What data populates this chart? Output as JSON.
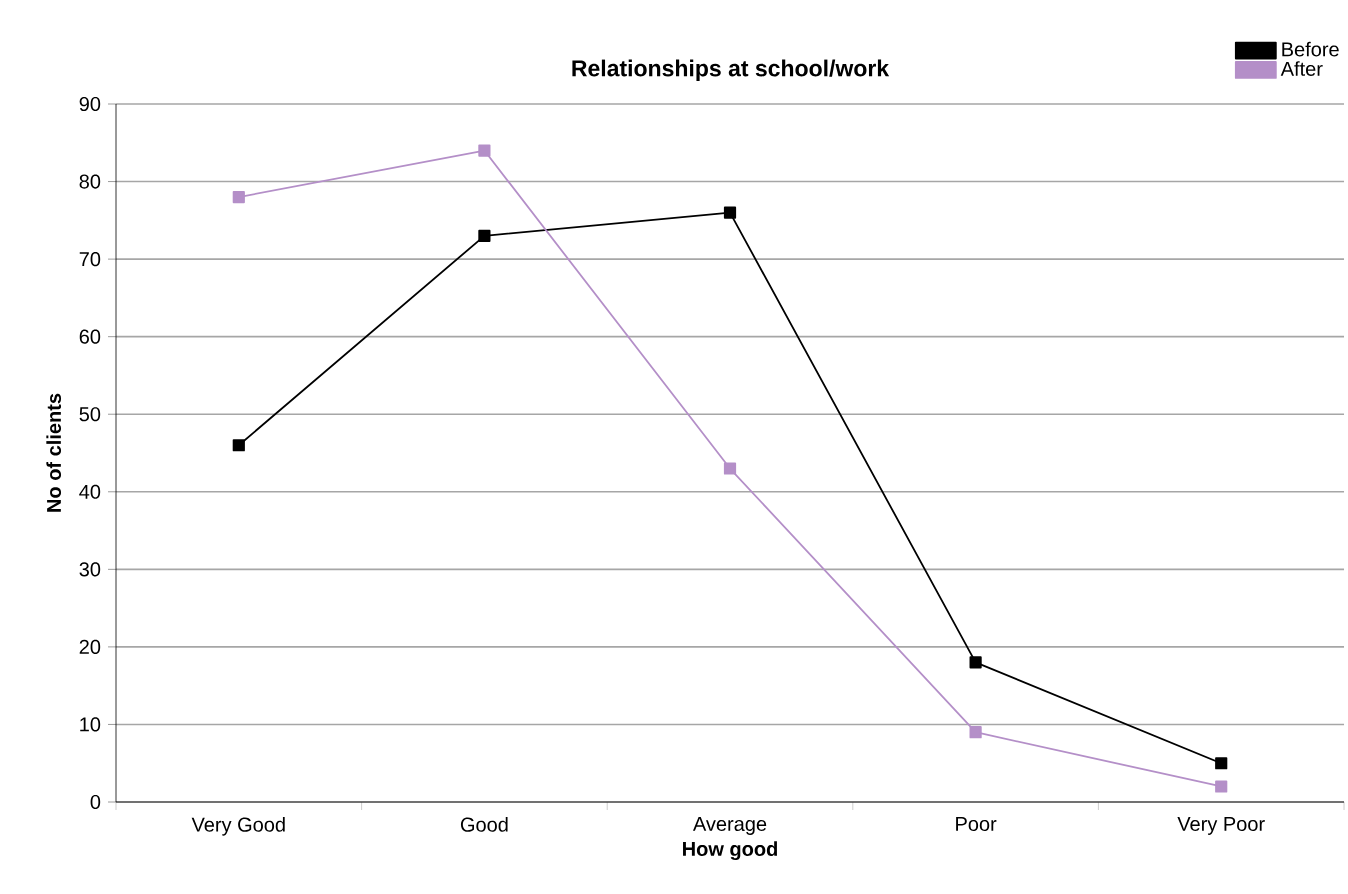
{
  "chart_data": {
    "type": "line",
    "title": "Relationships at school/work",
    "xlabel": "How good",
    "ylabel": "No of clients",
    "categories": [
      "Very Good",
      "Good",
      "Average",
      "Poor",
      "Very Poor"
    ],
    "series": [
      {
        "name": "Before",
        "color": "#000000",
        "values": [
          46,
          73,
          76,
          18,
          5
        ]
      },
      {
        "name": "After",
        "color": "#b48fc8",
        "values": [
          78,
          84,
          43,
          9,
          2
        ]
      }
    ],
    "ylim": [
      0,
      90
    ],
    "yticks": [
      0,
      10,
      20,
      30,
      40,
      50,
      60,
      70,
      80,
      90
    ],
    "grid": "y",
    "legend": "top right",
    "marker": "square"
  }
}
